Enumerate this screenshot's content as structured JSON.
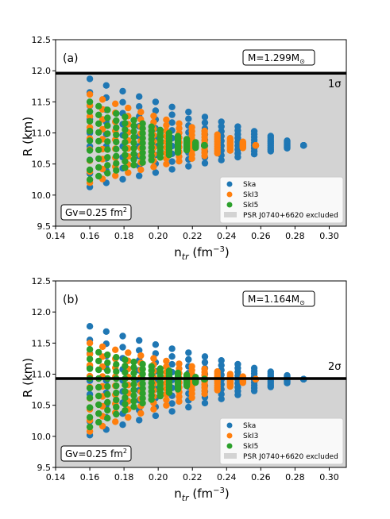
{
  "chart_data": [
    {
      "type": "scatter",
      "panel_label": "(a)",
      "mass_label": "M=1.299M",
      "mass_symbol": "⊙",
      "gv_label": "Gv=0.25 fm",
      "gv_sup": "2",
      "sigma_label": "1σ",
      "threshold_R": 11.96,
      "excluded_range": [
        9.5,
        11.96
      ],
      "xlabel": "n",
      "xlabel_sub": "tr",
      "xlabel_units": " (fm",
      "xlabel_sup": "−3",
      "xlabel_close": ")",
      "ylabel": "R (km)",
      "xlim": [
        0.14,
        0.31
      ],
      "ylim": [
        9.5,
        12.5
      ],
      "xticks": [
        "0.14",
        "0.16",
        "0.18",
        "0.20",
        "0.22",
        "0.24",
        "0.26",
        "0.28",
        "0.30"
      ],
      "yticks": [
        "9.5",
        "10.0",
        "10.5",
        "11.0",
        "11.5",
        "12.0",
        "12.5"
      ],
      "legend": [
        "Ska",
        "SkI3",
        "SkI5",
        "PSR J0740+6620 excluded"
      ],
      "legend_loc": "lower right",
      "series": [
        {
          "name": "Ska",
          "color": "#1f77b4",
          "x_range": [
            0.16,
            0.285
          ],
          "r_low_start": 10.13,
          "r_high_start": 11.87,
          "r_tip": 10.8
        },
        {
          "name": "SkI3",
          "color": "#ff7f0e",
          "x_range": [
            0.16,
            0.257
          ],
          "r_low_start": 10.2,
          "r_high_start": 11.62,
          "r_tip": 10.8
        },
        {
          "name": "SkI5",
          "color": "#2ca02c",
          "x_range": [
            0.16,
            0.227
          ],
          "r_low_start": 10.25,
          "r_high_start": 11.5,
          "r_tip": 10.8
        }
      ]
    },
    {
      "type": "scatter",
      "panel_label": "(b)",
      "mass_label": "M=1.164M",
      "mass_symbol": "⊙",
      "gv_label": "Gv=0.25 fm",
      "gv_sup": "2",
      "sigma_label": "2σ",
      "threshold_R": 10.93,
      "excluded_range": [
        9.5,
        10.93
      ],
      "xlabel": "n",
      "xlabel_sub": "tr",
      "xlabel_units": " (fm",
      "xlabel_sup": "−3",
      "xlabel_close": ")",
      "ylabel": "R (km)",
      "xlim": [
        0.14,
        0.31
      ],
      "ylim": [
        9.5,
        12.5
      ],
      "xticks": [
        "0.14",
        "0.16",
        "0.18",
        "0.20",
        "0.22",
        "0.24",
        "0.26",
        "0.28",
        "0.30"
      ],
      "yticks": [
        "9.5",
        "10.0",
        "10.5",
        "11.0",
        "11.5",
        "12.0",
        "12.5"
      ],
      "legend": [
        "Ska",
        "SkI3",
        "SkI5",
        "PSR J0740+6620 excluded"
      ],
      "legend_loc": "lower right",
      "series": [
        {
          "name": "Ska",
          "color": "#1f77b4",
          "x_range": [
            0.16,
            0.285
          ],
          "r_low_start": 10.02,
          "r_high_start": 11.77,
          "r_tip": 10.92
        },
        {
          "name": "SkI3",
          "color": "#ff7f0e",
          "x_range": [
            0.16,
            0.257
          ],
          "r_low_start": 10.08,
          "r_high_start": 11.5,
          "r_tip": 10.92
        },
        {
          "name": "SkI5",
          "color": "#2ca02c",
          "x_range": [
            0.16,
            0.227
          ],
          "r_low_start": 10.15,
          "r_high_start": 11.4,
          "r_tip": 10.92
        }
      ]
    }
  ]
}
